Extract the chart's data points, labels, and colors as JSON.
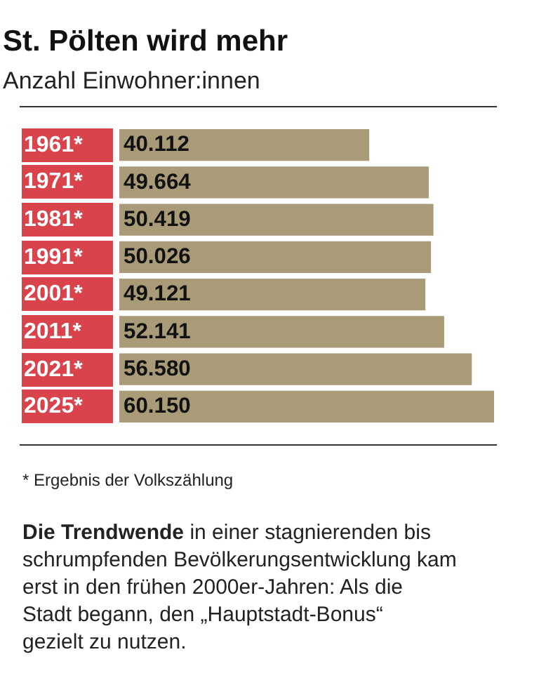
{
  "chart_data": {
    "type": "bar",
    "orientation": "horizontal",
    "title": "St. Pölten wird mehr",
    "subtitle": "Anzahl Einwohner:innen",
    "categories": [
      "1961*",
      "1971*",
      "1981*",
      "1991*",
      "2001*",
      "2011*",
      "2021*",
      "2025*"
    ],
    "values": [
      40112,
      49664,
      50419,
      50026,
      49121,
      52141,
      56580,
      60150
    ],
    "value_labels": [
      "40.112",
      "49.664",
      "50.419",
      "50.026",
      "49.121",
      "52.141",
      "56.580",
      "60.150"
    ],
    "color": "#a99a78",
    "xlim": [
      0,
      60150
    ],
    "tick_labels": false,
    "annotations": [
      "* Ergebnis der Volkszählung",
      "Die Trendwende",
      "in einer stagnierenden bis schrumpfenden Bevölkerungsentwicklung kam erst in den frühen 2000er-Jahren: Als die Stadt begann, den „Hauptstadt-Bonus“ gezielt zu nutzen."
    ]
  }
}
